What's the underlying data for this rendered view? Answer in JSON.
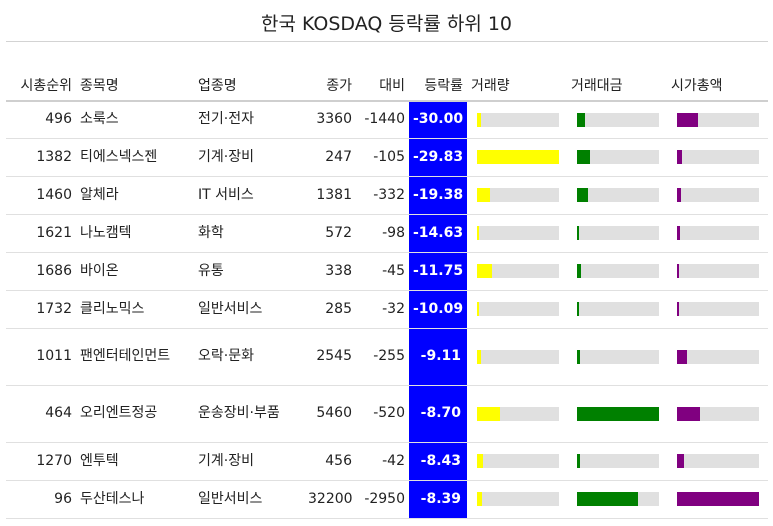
{
  "title": "한국 KOSDAQ 등락률 하위 10",
  "headers": {
    "rank": "시총순위",
    "name": "종목명",
    "sector": "업종명",
    "price": "종가",
    "diff": "대비",
    "rate": "등락률",
    "volume": "거래량",
    "amount": "거래대금",
    "cap": "시가총액"
  },
  "colors": {
    "rate_bg": "#0000ff",
    "volume": "#ffff00",
    "amount": "#008000",
    "cap": "#800080",
    "track": "#e0e0e0"
  },
  "chart_data": {
    "type": "table",
    "columns": [
      "시총순위",
      "종목명",
      "업종명",
      "종가",
      "대비",
      "등락률",
      "거래량",
      "거래대금",
      "시가총액"
    ],
    "bar_columns": [
      "거래량",
      "거래대금",
      "시가총액"
    ],
    "rows": [
      {
        "rank": "496",
        "name": "소룩스",
        "sector": "전기·전자",
        "price": "3360",
        "diff": "-1440",
        "rate": "-30.00",
        "volume": 0.05,
        "amount": 0.1,
        "cap": 0.26
      },
      {
        "rank": "1382",
        "name": "티에스넥스젠",
        "sector": "기계·장비",
        "price": "247",
        "diff": "-105",
        "rate": "-29.83",
        "volume": 1.0,
        "amount": 0.16,
        "cap": 0.06
      },
      {
        "rank": "1460",
        "name": "알체라",
        "sector": "IT 서비스",
        "price": "1381",
        "diff": "-332",
        "rate": "-19.38",
        "volume": 0.16,
        "amount": 0.13,
        "cap": 0.05
      },
      {
        "rank": "1621",
        "name": "나노캠텍",
        "sector": "화학",
        "price": "572",
        "diff": "-98",
        "rate": "-14.63",
        "volume": 0.02,
        "amount": 0.02,
        "cap": 0.04
      },
      {
        "rank": "1686",
        "name": "바이온",
        "sector": "유통",
        "price": "338",
        "diff": "-45",
        "rate": "-11.75",
        "volume": 0.18,
        "amount": 0.05,
        "cap": 0.03
      },
      {
        "rank": "1732",
        "name": "클리노믹스",
        "sector": "일반서비스",
        "price": "285",
        "diff": "-32",
        "rate": "-10.09",
        "volume": 0.02,
        "amount": 0.02,
        "cap": 0.02
      },
      {
        "rank": "1011",
        "name": "팬엔터테인먼트",
        "sector": "오락·문화",
        "price": "2545",
        "diff": "-255",
        "rate": "-9.11",
        "volume": 0.05,
        "amount": 0.04,
        "cap": 0.12
      },
      {
        "rank": "464",
        "name": "오리엔트정공",
        "sector": "운송장비·부품",
        "price": "5460",
        "diff": "-520",
        "rate": "-8.70",
        "volume": 0.28,
        "amount": 1.0,
        "cap": 0.28
      },
      {
        "rank": "1270",
        "name": "엔투텍",
        "sector": "기계·장비",
        "price": "456",
        "diff": "-42",
        "rate": "-8.43",
        "volume": 0.07,
        "amount": 0.04,
        "cap": 0.08
      },
      {
        "rank": "96",
        "name": "두산테스나",
        "sector": "일반서비스",
        "price": "32200",
        "diff": "-2950",
        "rate": "-8.39",
        "volume": 0.06,
        "amount": 0.74,
        "cap": 1.0
      }
    ]
  }
}
